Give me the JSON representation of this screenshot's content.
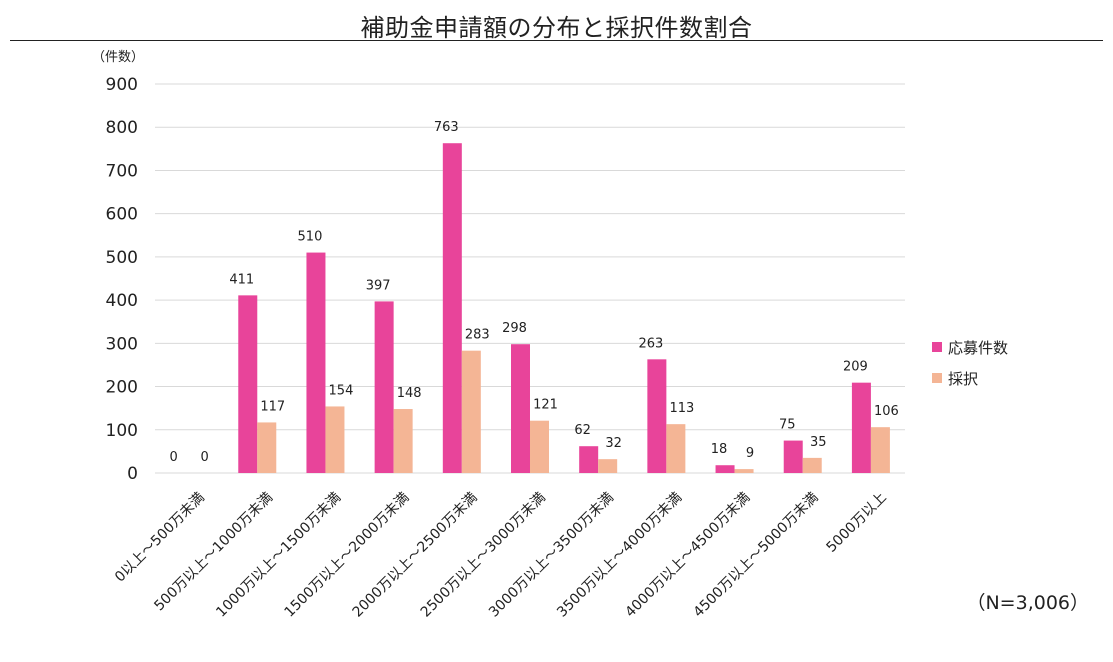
{
  "chart_data": {
    "type": "bar",
    "title": "補助金申請額の分布と採択件数割合",
    "ylabel": "（件数）",
    "ylim": [
      0,
      900
    ],
    "yticks": [
      0,
      100,
      200,
      300,
      400,
      500,
      600,
      700,
      800,
      900
    ],
    "grid": true,
    "legend_position": "right",
    "categories": [
      "0以上～500万未満",
      "500万以上～1000万未満",
      "1000万以上～1500万未満",
      "1500万以上～2000万未満",
      "2000万以上～2500万未満",
      "2500万以上～3000万未満",
      "3000万以上～3500万未満",
      "3500万以上～4000万未満",
      "4000万以上～4500万未満",
      "4500万以上～5000万未満",
      "5000万以上"
    ],
    "series": [
      {
        "name": "応募件数",
        "color": "#E8449A",
        "values": [
          0,
          411,
          510,
          397,
          763,
          298,
          62,
          263,
          18,
          75,
          209
        ]
      },
      {
        "name": "採択",
        "color": "#F4B595",
        "values": [
          0,
          117,
          154,
          148,
          283,
          121,
          32,
          113,
          9,
          35,
          106
        ]
      }
    ],
    "note": "（N=3,006）"
  }
}
